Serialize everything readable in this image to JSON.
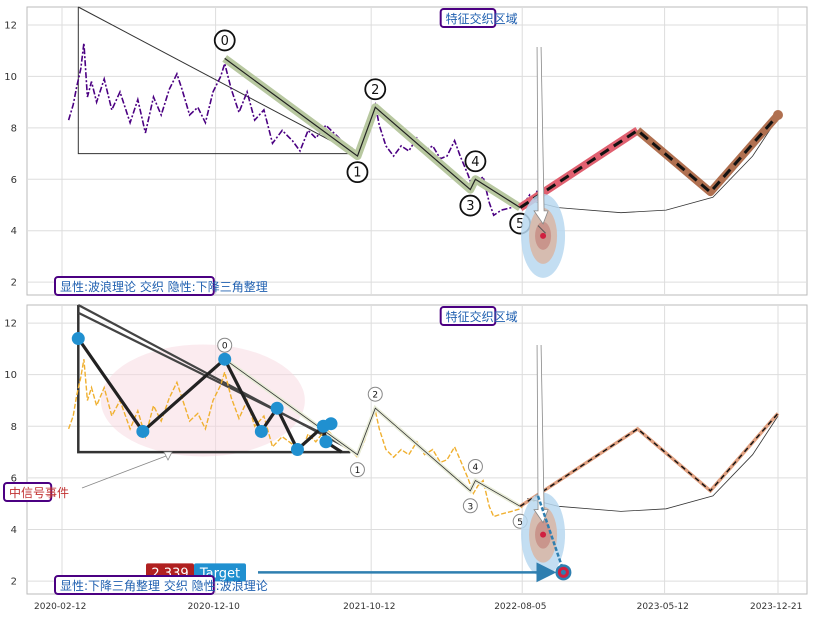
{
  "chart_data": {
    "type": "line",
    "x_ticks": [
      "2020-02-12",
      "2020-12-10",
      "2021-10-12",
      "2022-08-05",
      "2023-05-12",
      "2023-12-21"
    ],
    "colors": {
      "top_price": "#4b0082",
      "bottom_price": "#f0b030",
      "wave_band": "#b8c8a0",
      "forecast_red": "#e06070",
      "forecast_brown": "#b07050",
      "marker_blue": "#2090d0",
      "label_border": "#4b0082",
      "label_text_blue": "#2060b0",
      "label_text_red": "#c03030",
      "target_red": "#b02020"
    },
    "panels": [
      {
        "id": "top",
        "ylim": [
          1.5,
          12.7
        ],
        "y_ticks": [
          2,
          4,
          6,
          8,
          10,
          12
        ],
        "label_top": "特征交织区域",
        "label_bottom": "显性:波浪理论 交织 隐性:下降三角整理",
        "price_series": [
          [
            "2020-02-25",
            8.3
          ],
          [
            "2020-03-05",
            8.9
          ],
          [
            "2020-03-12",
            9.6
          ],
          [
            "2020-03-20",
            10.3
          ],
          [
            "2020-03-26",
            11.3
          ],
          [
            "2020-04-02",
            9.2
          ],
          [
            "2020-04-10",
            9.8
          ],
          [
            "2020-04-20",
            9.0
          ],
          [
            "2020-05-05",
            9.9
          ],
          [
            "2020-05-20",
            8.7
          ],
          [
            "2020-06-05",
            9.4
          ],
          [
            "2020-06-25",
            8.2
          ],
          [
            "2020-07-10",
            9.1
          ],
          [
            "2020-07-25",
            7.8
          ],
          [
            "2020-08-10",
            9.2
          ],
          [
            "2020-08-25",
            8.5
          ],
          [
            "2020-09-10",
            9.5
          ],
          [
            "2020-09-25",
            10.1
          ],
          [
            "2020-10-05",
            9.5
          ],
          [
            "2020-10-20",
            8.5
          ],
          [
            "2020-11-05",
            8.8
          ],
          [
            "2020-11-20",
            8.2
          ],
          [
            "2020-12-05",
            9.4
          ],
          [
            "2020-12-20",
            10.0
          ],
          [
            "2020-12-28",
            10.5
          ],
          [
            "2021-01-10",
            9.5
          ],
          [
            "2021-01-25",
            8.6
          ],
          [
            "2021-02-10",
            9.4
          ],
          [
            "2021-02-25",
            8.3
          ],
          [
            "2021-03-15",
            8.7
          ],
          [
            "2021-04-01",
            7.4
          ],
          [
            "2021-04-20",
            7.9
          ],
          [
            "2021-05-10",
            7.5
          ],
          [
            "2021-05-25",
            7.1
          ],
          [
            "2021-06-10",
            7.9
          ],
          [
            "2021-06-25",
            7.6
          ],
          [
            "2021-07-15",
            8.1
          ],
          [
            "2021-08-05",
            7.7
          ],
          [
            "2021-08-20",
            7.4
          ],
          [
            "2021-09-05",
            7.2
          ],
          [
            "2021-09-15",
            6.9
          ],
          [
            "2021-09-28",
            7.6
          ],
          [
            "2021-10-12",
            8.5
          ],
          [
            "2021-10-20",
            8.9
          ],
          [
            "2021-10-28",
            8.1
          ],
          [
            "2021-11-10",
            7.3
          ],
          [
            "2021-11-25",
            6.9
          ],
          [
            "2021-12-10",
            7.3
          ],
          [
            "2021-12-25",
            7.1
          ],
          [
            "2022-01-10",
            7.6
          ],
          [
            "2022-01-25",
            7.1
          ],
          [
            "2022-02-10",
            7.3
          ],
          [
            "2022-02-25",
            6.8
          ],
          [
            "2022-03-10",
            6.9
          ],
          [
            "2022-03-25",
            7.5
          ],
          [
            "2022-04-05",
            6.9
          ],
          [
            "2022-04-20",
            6.2
          ],
          [
            "2022-05-01",
            5.6
          ],
          [
            "2022-05-10",
            5.9
          ],
          [
            "2022-05-20",
            6.1
          ],
          [
            "2022-06-01",
            5.1
          ],
          [
            "2022-06-10",
            4.6
          ],
          [
            "2022-06-25",
            4.8
          ],
          [
            "2022-07-15",
            4.9
          ],
          [
            "2022-08-01",
            5.0
          ],
          [
            "2022-08-10",
            5.1
          ],
          [
            "2022-08-20",
            5.4
          ],
          [
            "2022-08-28",
            5.3
          ],
          [
            "2022-09-05",
            5.6
          ]
        ],
        "wave_points": [
          [
            "2020-12-28",
            10.7,
            "0"
          ],
          [
            "2021-09-15",
            6.9,
            "1"
          ],
          [
            "2021-10-20",
            8.8,
            "2"
          ],
          [
            "2022-04-25",
            5.6,
            "3"
          ],
          [
            "2022-05-05",
            6.0,
            "4"
          ],
          [
            "2022-08-01",
            4.9,
            "5"
          ]
        ],
        "forecast_path": [
          [
            "2022-08-01",
            4.9
          ],
          [
            "2023-03-20",
            7.9
          ],
          [
            "2023-08-10",
            5.5
          ],
          [
            "2023-12-21",
            8.5
          ]
        ],
        "curve_points": [
          [
            "2022-08-15",
            5.2
          ],
          [
            "2022-10-15",
            4.9
          ],
          [
            "2023-02-15",
            4.7
          ],
          [
            "2023-05-15",
            4.8
          ],
          [
            "2023-08-15",
            5.3
          ],
          [
            "2023-11-01",
            6.9
          ],
          [
            "2023-12-21",
            8.4
          ]
        ],
        "triangle": {
          "top_left": [
            "2020-03-15",
            12.7
          ],
          "bottom_left": [
            "2020-03-15",
            7.0
          ],
          "right": [
            "2021-09-01",
            7.0
          ]
        },
        "fan_lines": [
          [
            [
              "2020-03-15",
              12.7
            ],
            [
              "2021-09-01",
              7.1
            ]
          ]
        ],
        "ellipse": [
          "2022-09-15",
          3.8
        ],
        "extra_line": [
          [
            "2022-09-05",
            4.2
          ],
          [
            "2022-09-20",
            3.9
          ]
        ]
      },
      {
        "id": "bottom",
        "ylim": [
          1.5,
          12.7
        ],
        "y_ticks": [
          2,
          4,
          6,
          8,
          10,
          12
        ],
        "label_top": "特征交织区域",
        "label_bottom": "显性:下降三角整理 交织 隐性:波浪理论",
        "label_event": "中信号事件",
        "target_value": "2.339",
        "target_label": "Target",
        "price_series": [
          [
            "2020-02-25",
            7.9
          ],
          [
            "2020-03-05",
            8.4
          ],
          [
            "2020-03-12",
            9.2
          ],
          [
            "2020-03-20",
            9.9
          ],
          [
            "2020-03-26",
            10.6
          ],
          [
            "2020-04-02",
            9.0
          ],
          [
            "2020-04-10",
            9.5
          ],
          [
            "2020-04-20",
            8.8
          ],
          [
            "2020-05-05",
            9.5
          ],
          [
            "2020-05-20",
            8.4
          ],
          [
            "2020-06-05",
            9.0
          ],
          [
            "2020-06-25",
            7.9
          ],
          [
            "2020-07-10",
            8.6
          ],
          [
            "2020-07-25",
            7.6
          ],
          [
            "2020-08-10",
            8.8
          ],
          [
            "2020-08-25",
            8.2
          ],
          [
            "2020-09-10",
            9.1
          ],
          [
            "2020-09-25",
            9.7
          ],
          [
            "2020-10-05",
            9.1
          ],
          [
            "2020-10-20",
            8.2
          ],
          [
            "2020-11-05",
            8.5
          ],
          [
            "2020-11-20",
            7.9
          ],
          [
            "2020-12-05",
            9.0
          ],
          [
            "2020-12-20",
            9.6
          ],
          [
            "2020-12-28",
            10.1
          ],
          [
            "2021-01-10",
            9.1
          ],
          [
            "2021-01-25",
            8.3
          ],
          [
            "2021-02-10",
            9.0
          ],
          [
            "2021-02-25",
            8.0
          ],
          [
            "2021-03-15",
            8.4
          ],
          [
            "2021-04-01",
            7.2
          ],
          [
            "2021-04-20",
            7.6
          ],
          [
            "2021-05-10",
            7.3
          ],
          [
            "2021-05-25",
            6.9
          ],
          [
            "2021-06-10",
            7.7
          ],
          [
            "2021-06-25",
            7.4
          ],
          [
            "2021-07-15",
            7.9
          ],
          [
            "2021-08-05",
            7.5
          ],
          [
            "2021-08-20",
            7.2
          ],
          [
            "2021-09-05",
            7.0
          ],
          [
            "2021-09-15",
            6.8
          ],
          [
            "2021-09-28",
            7.4
          ],
          [
            "2021-10-12",
            8.2
          ],
          [
            "2021-10-20",
            8.6
          ],
          [
            "2021-10-28",
            7.9
          ],
          [
            "2021-11-10",
            7.1
          ],
          [
            "2021-11-25",
            6.8
          ],
          [
            "2021-12-10",
            7.1
          ],
          [
            "2021-12-25",
            6.9
          ],
          [
            "2022-01-10",
            7.4
          ],
          [
            "2022-01-25",
            6.9
          ],
          [
            "2022-02-10",
            7.1
          ],
          [
            "2022-02-25",
            6.6
          ],
          [
            "2022-03-10",
            6.7
          ],
          [
            "2022-03-25",
            7.2
          ],
          [
            "2022-04-05",
            6.7
          ],
          [
            "2022-04-20",
            6.0
          ],
          [
            "2022-05-01",
            5.4
          ],
          [
            "2022-05-10",
            5.7
          ],
          [
            "2022-05-20",
            5.9
          ],
          [
            "2022-06-01",
            4.9
          ],
          [
            "2022-06-10",
            4.5
          ],
          [
            "2022-06-25",
            4.6
          ],
          [
            "2022-07-15",
            4.7
          ],
          [
            "2022-08-01",
            4.8
          ],
          [
            "2022-08-10",
            5.0
          ],
          [
            "2022-08-20",
            5.2
          ],
          [
            "2022-08-28",
            5.1
          ],
          [
            "2022-09-05",
            5.4
          ]
        ],
        "wave_points": [
          [
            "2020-12-28",
            10.6,
            "0"
          ],
          [
            "2021-09-15",
            6.9,
            "1"
          ],
          [
            "2021-10-20",
            8.7,
            "2"
          ],
          [
            "2022-04-25",
            5.5,
            "3"
          ],
          [
            "2022-05-05",
            5.9,
            "4"
          ],
          [
            "2022-08-01",
            4.9,
            "5"
          ]
        ],
        "forecast_path": [
          [
            "2022-08-01",
            4.9
          ],
          [
            "2023-03-20",
            7.9
          ],
          [
            "2023-08-10",
            5.5
          ],
          [
            "2023-12-21",
            8.5
          ]
        ],
        "curve_points": [
          [
            "2022-08-15",
            5.2
          ],
          [
            "2022-10-15",
            4.9
          ],
          [
            "2023-02-15",
            4.7
          ],
          [
            "2023-05-15",
            4.8
          ],
          [
            "2023-08-15",
            5.3
          ],
          [
            "2023-11-01",
            6.9
          ],
          [
            "2023-12-21",
            8.4
          ]
        ],
        "triangle": {
          "top_left": [
            "2020-03-15",
            12.7
          ],
          "bottom_left": [
            "2020-03-15",
            7.0
          ],
          "right": [
            "2021-09-01",
            7.0
          ]
        },
        "fan_lines": [
          [
            [
              "2020-03-15",
              12.7
            ],
            [
              "2021-09-01",
              7.1
            ]
          ],
          [
            [
              "2020-03-15",
              12.4
            ],
            [
              "2021-08-20",
              7.3
            ]
          ]
        ],
        "zigzag": [
          [
            "2020-03-15",
            11.4
          ],
          [
            "2020-07-20",
            7.8
          ],
          [
            "2020-12-28",
            10.6
          ],
          [
            "2021-03-10",
            7.8
          ],
          [
            "2021-04-10",
            8.7
          ],
          [
            "2021-05-20",
            7.1
          ],
          [
            "2021-07-10",
            8.0
          ],
          [
            "2021-07-15",
            7.4
          ],
          [
            "2021-08-15",
            7.0
          ]
        ],
        "blue_markers": [
          [
            "2020-03-15",
            11.4
          ],
          [
            "2020-07-20",
            7.8
          ],
          [
            "2020-12-28",
            10.6
          ],
          [
            "2021-03-10",
            7.8
          ],
          [
            "2021-04-10",
            8.7
          ],
          [
            "2021-05-20",
            7.1
          ],
          [
            "2021-07-10",
            8.0
          ],
          [
            "2021-07-15",
            7.4
          ],
          [
            "2021-07-25",
            8.1
          ]
        ],
        "pink_ellipse": [
          "2020-11-15",
          9.0
        ],
        "ellipse": [
          "2022-09-15",
          3.8
        ],
        "target_point": [
          "2022-10-25",
          2.34
        ],
        "target_line": [
          [
            "2022-09-05",
            5.3
          ],
          [
            "2022-10-25",
            2.4
          ]
        ]
      }
    ]
  }
}
